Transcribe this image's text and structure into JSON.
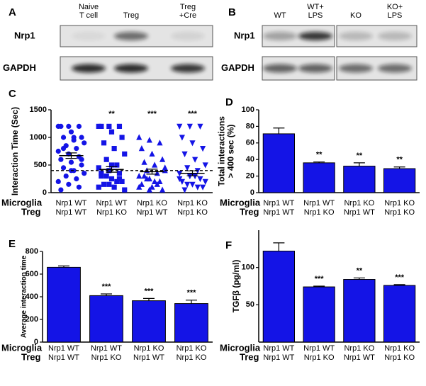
{
  "blots": [
    {
      "label": "A",
      "columns": [
        [
          "Naive",
          "T cell"
        ],
        [
          "Treg"
        ],
        [
          "Treg",
          "+Cre"
        ]
      ],
      "rows": [
        "Nrp1",
        "GAPDH"
      ]
    },
    {
      "label": "B",
      "columns": [
        [
          "WT"
        ],
        [
          "WT+",
          "LPS"
        ],
        [
          "KO"
        ],
        [
          "KO+",
          "LPS"
        ]
      ],
      "rows": [
        "Nrp1",
        "GAPDH"
      ]
    }
  ],
  "chart_data": [
    {
      "type": "strip",
      "label": "C",
      "ylabel": [
        "Interaction Time (Sec)"
      ],
      "ylim": [
        0,
        1500
      ],
      "yticks": [
        0,
        500,
        1000,
        1500
      ],
      "reference_line": 400,
      "group_labels": [
        {
          "name": "Microglia",
          "values": [
            "Nrp1 WT",
            "Nrp1 WT",
            "Nrp1 KO",
            "Nrp1 KO"
          ]
        },
        {
          "name": "Treg",
          "values": [
            "Nrp1 WT",
            "Nrp1 KO",
            "Nrp1 WT",
            "Nrp1 KO"
          ]
        }
      ],
      "color": "#1414e6",
      "series": [
        {
          "marker": "circle",
          "values": [
            1200,
            1200,
            1200,
            1200,
            1100,
            1000,
            1000,
            950,
            900,
            850,
            800,
            750,
            700,
            650,
            600,
            550,
            500,
            450,
            400,
            350,
            300,
            250,
            200,
            150,
            100,
            50,
            400,
            600,
            800,
            1000
          ]
        },
        {
          "marker": "square",
          "values": [
            1200,
            1200,
            1200,
            1200,
            1100,
            1000,
            900,
            800,
            700,
            600,
            500,
            450,
            400,
            350,
            300,
            250,
            200,
            150,
            100,
            50,
            300,
            200,
            100,
            150,
            250,
            350,
            500
          ]
        },
        {
          "marker": "triangle-up",
          "values": [
            1000,
            950,
            900,
            800,
            700,
            600,
            550,
            500,
            450,
            400,
            350,
            300,
            250,
            200,
            150,
            100,
            50,
            300,
            200,
            400,
            250,
            150,
            100,
            50
          ]
        },
        {
          "marker": "triangle-down",
          "values": [
            1200,
            1200,
            1200,
            1000,
            900,
            800,
            700,
            600,
            500,
            450,
            400,
            350,
            300,
            250,
            200,
            150,
            100,
            50,
            300,
            200,
            150,
            100,
            250
          ]
        }
      ],
      "means": [
        670,
        420,
        380,
        350
      ],
      "errors": [
        50,
        50,
        45,
        45
      ],
      "annotations": [
        null,
        "**",
        "***",
        "***"
      ]
    },
    {
      "type": "bar",
      "label": "D",
      "ylabel": [
        "Total interactions",
        "> 400 sec (%)"
      ],
      "ylim": [
        0,
        100
      ],
      "yticks": [
        0,
        20,
        40,
        60,
        80,
        100
      ],
      "group_labels": [
        {
          "name": "Microglia",
          "values": [
            "Nrp1 WT",
            "Nrp1 WT",
            "Nrp1 KO",
            "Nrp1 KO"
          ]
        },
        {
          "name": "Treg",
          "values": [
            "Nrp1 WT",
            "Nrp1 KO",
            "Nrp1 WT",
            "Nrp1 KO"
          ]
        }
      ],
      "color": "#1414e6",
      "values": [
        71,
        36,
        32,
        29
      ],
      "errors": [
        7,
        1,
        4,
        2
      ],
      "annotations": [
        null,
        "**",
        "**",
        "**"
      ]
    },
    {
      "type": "bar",
      "label": "E",
      "ylabel": [
        "Average interaction time"
      ],
      "ylim": [
        0,
        800
      ],
      "yticks": [
        0,
        200,
        400,
        600,
        800
      ],
      "group_labels": [
        {
          "name": "Microglia",
          "values": [
            "Nrp1 WT",
            "Nrp1 WT",
            "Nrp1 KO",
            "Nrp1 KO"
          ]
        },
        {
          "name": "Treg",
          "values": [
            "Nrp1 WT",
            "Nrp1 KO",
            "Nrp1 WT",
            "Nrp1 KO"
          ]
        }
      ],
      "color": "#1414e6",
      "values": [
        660,
        410,
        365,
        340
      ],
      "errors": [
        12,
        15,
        20,
        30
      ],
      "annotations": [
        null,
        "***",
        "***",
        "***"
      ]
    },
    {
      "type": "bar",
      "label": "F",
      "ylabel": [
        "TGFβ (pg/ml)"
      ],
      "ylim": [
        0,
        150
      ],
      "yticks": [
        50,
        100
      ],
      "group_labels": [
        {
          "name": "Microglia",
          "values": [
            "Nrp1 WT",
            "Nrp1 WT",
            "Nrp1 KO",
            "Nrp1 KO"
          ]
        },
        {
          "name": "Treg",
          "values": [
            "Nrp1 WT",
            "Nrp1 KO",
            "Nrp1 WT",
            "Nrp1 KO"
          ]
        }
      ],
      "color": "#1414e6",
      "values": [
        122,
        74,
        84,
        76
      ],
      "errors": [
        11,
        1,
        2,
        1
      ],
      "annotations": [
        null,
        "***",
        "**",
        "***"
      ]
    }
  ]
}
